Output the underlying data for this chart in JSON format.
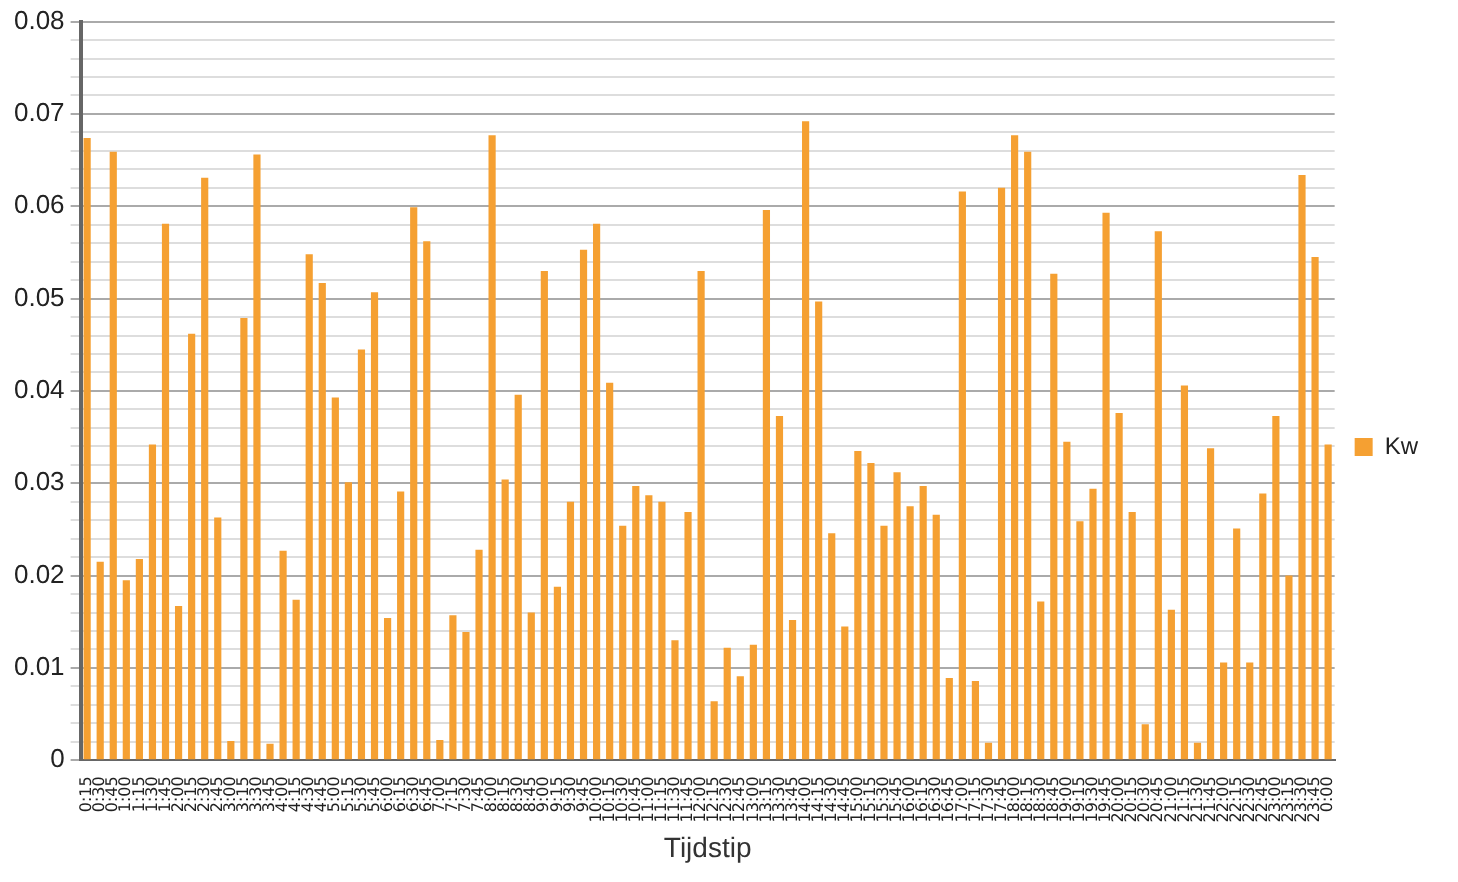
{
  "chart_data": {
    "type": "bar",
    "xlabel": "Tijdstip",
    "categories": [
      "0:15",
      "0:30",
      "0:45",
      "1:00",
      "1:15",
      "1:30",
      "1:45",
      "2:00",
      "2:15",
      "2:30",
      "2:45",
      "3:00",
      "3:15",
      "3:30",
      "3:45",
      "4:00",
      "4:15",
      "4:30",
      "4:45",
      "5:00",
      "5:15",
      "5:30",
      "5:45",
      "6:00",
      "6:15",
      "6:30",
      "6:45",
      "7:00",
      "7:15",
      "7:30",
      "7:45",
      "8:00",
      "8:15",
      "8:30",
      "8:45",
      "9:00",
      "9:15",
      "9:30",
      "9:45",
      "10:00",
      "10:15",
      "10:30",
      "10:45",
      "11:00",
      "11:15",
      "11:30",
      "11:45",
      "12:00",
      "12:15",
      "12:30",
      "12:45",
      "13:00",
      "13:15",
      "13:30",
      "13:45",
      "14:00",
      "14:15",
      "14:30",
      "14:45",
      "15:00",
      "15:15",
      "15:30",
      "15:45",
      "16:00",
      "16:15",
      "16:30",
      "16:45",
      "17:00",
      "17:15",
      "17:30",
      "17:45",
      "18:00",
      "18:15",
      "18:30",
      "18:45",
      "19:00",
      "19:15",
      "19:30",
      "19:45",
      "20:00",
      "20:15",
      "20:30",
      "20:45",
      "21:00",
      "21:15",
      "21:30",
      "21:45",
      "22:00",
      "22:15",
      "22:30",
      "22:45",
      "23:00",
      "23:15",
      "23:30",
      "23:45",
      "0:00"
    ],
    "series": [
      {
        "name": "Kw",
        "color": "#f5a032",
        "values": [
          0.0674,
          0.0215,
          0.0659,
          0.0195,
          0.0218,
          0.0342,
          0.0581,
          0.0167,
          0.0462,
          0.0631,
          0.0263,
          0.0021,
          0.0479,
          0.0656,
          0.0018,
          0.0227,
          0.0174,
          0.0548,
          0.0517,
          0.0393,
          0.0301,
          0.0445,
          0.0507,
          0.0154,
          0.0291,
          0.0599,
          0.0562,
          0.0022,
          0.0157,
          0.0139,
          0.0228,
          0.0677,
          0.0304,
          0.0396,
          0.016,
          0.053,
          0.0188,
          0.028,
          0.0553,
          0.0581,
          0.0409,
          0.0254,
          0.0297,
          0.0287,
          0.028,
          0.013,
          0.0269,
          0.053,
          0.0064,
          0.0122,
          0.0091,
          0.0125,
          0.0596,
          0.0373,
          0.0152,
          0.0692,
          0.0497,
          0.0246,
          0.0145,
          0.0335,
          0.0322,
          0.0254,
          0.0312,
          0.0275,
          0.0297,
          0.0266,
          0.0089,
          0.0616,
          0.0086,
          0.0019,
          0.062,
          0.0677,
          0.0659,
          0.0172,
          0.0527,
          0.0345,
          0.0259,
          0.0294,
          0.0593,
          0.0376,
          0.0269,
          0.0039,
          0.0573,
          0.0163,
          0.0406,
          0.0019,
          0.0338,
          0.0106,
          0.0251,
          0.0106,
          0.0289,
          0.0373,
          0.02,
          0.0634,
          0.0545,
          0.0342
        ]
      }
    ],
    "ylim": [
      0,
      0.08
    ],
    "yticks": [
      0,
      {
        "value": 0.002,
        "label": null
      },
      {
        "value": 0.004,
        "label": null
      },
      {
        "value": 0.006,
        "label": null
      },
      {
        "value": 0.008,
        "label": null
      },
      0.01,
      {
        "value": 0.012,
        "label": null
      },
      {
        "value": 0.014,
        "label": null
      },
      {
        "value": 0.016,
        "label": null
      },
      {
        "value": 0.018,
        "label": null
      },
      0.02,
      {
        "value": 0.022,
        "label": null
      },
      {
        "value": 0.024,
        "label": null
      },
      {
        "value": 0.026,
        "label": null
      },
      {
        "value": 0.028,
        "label": null
      },
      0.03,
      {
        "value": 0.032,
        "label": null
      },
      {
        "value": 0.034,
        "label": null
      },
      {
        "value": 0.036,
        "label": null
      },
      {
        "value": 0.038,
        "label": null
      },
      0.04,
      {
        "value": 0.042,
        "label": null
      },
      {
        "value": 0.044,
        "label": null
      },
      {
        "value": 0.046,
        "label": null
      },
      {
        "value": 0.048,
        "label": null
      },
      0.05,
      {
        "value": 0.052,
        "label": null
      },
      {
        "value": 0.054,
        "label": null
      },
      {
        "value": 0.056,
        "label": null
      },
      {
        "value": 0.058,
        "label": null
      },
      0.06,
      {
        "value": 0.062,
        "label": null
      },
      {
        "value": 0.064,
        "label": null
      },
      {
        "value": 0.066,
        "label": null
      },
      {
        "value": 0.068,
        "label": null
      },
      0.07,
      {
        "value": 0.072,
        "label": null
      },
      {
        "value": 0.074,
        "label": null
      },
      {
        "value": 0.076,
        "label": null
      },
      {
        "value": 0.078,
        "label": null
      },
      0.08
    ],
    "grid": "y",
    "legend": "right"
  }
}
